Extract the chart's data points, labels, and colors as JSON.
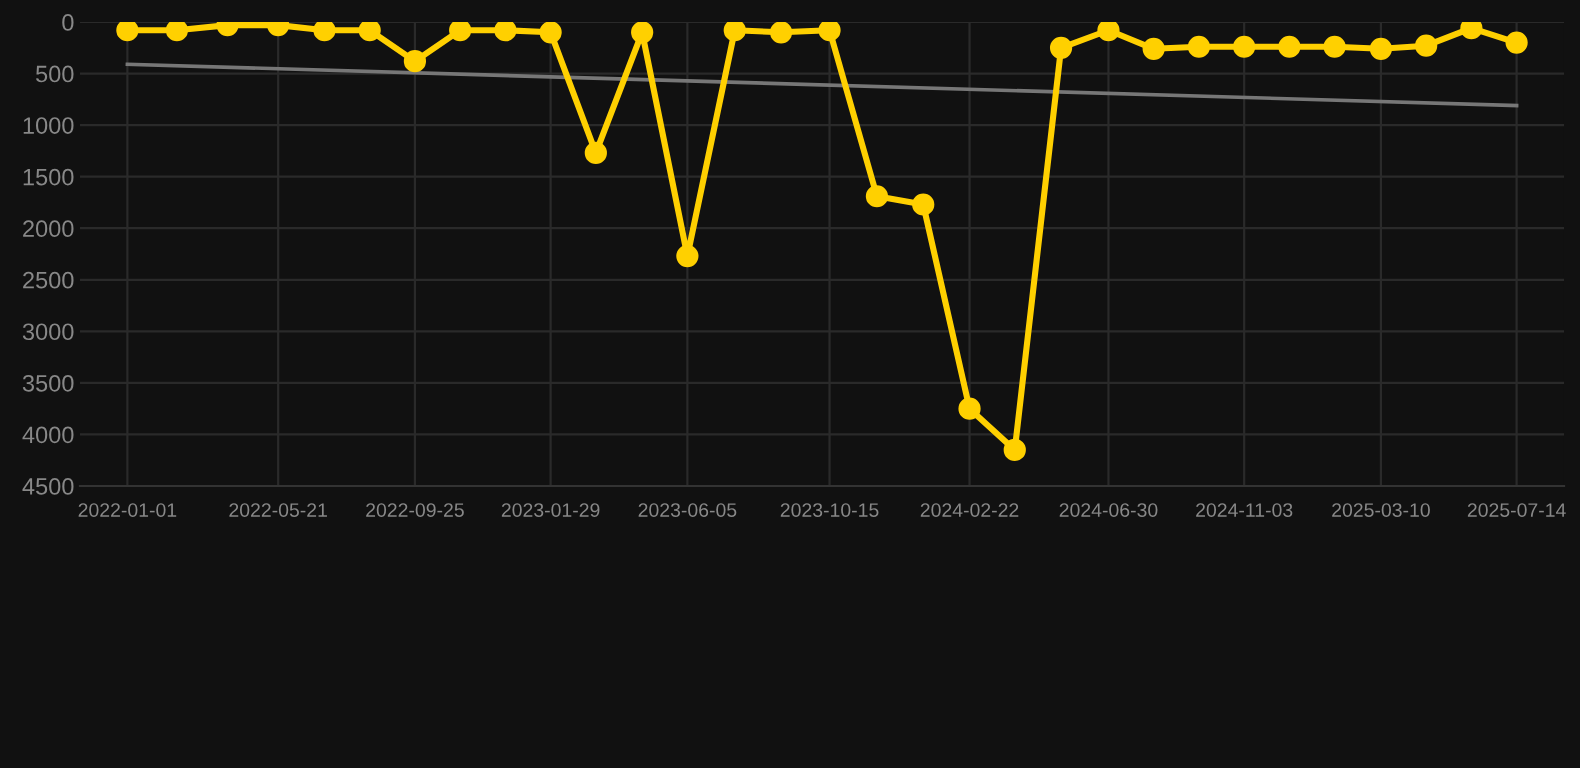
{
  "chart_data": {
    "type": "line",
    "ylim": [
      4500,
      0
    ],
    "yticks": [
      0,
      500,
      1000,
      1500,
      2000,
      2500,
      3000,
      3500,
      4000,
      4500
    ],
    "xlim": [
      "2021-11-18",
      "2025-08-27"
    ],
    "xticks": [
      {
        "value": "2022-01-01",
        "label": "2022-01-01"
      },
      {
        "value": "2022-05-21",
        "label": "2022-05-21"
      },
      {
        "value": "2022-09-25",
        "label": "2022-09-25"
      },
      {
        "value": "2023-01-29",
        "label": "2023-01-29"
      },
      {
        "value": "2023-06-05",
        "label": "2023-06-05"
      },
      {
        "value": "2023-10-15",
        "label": "2023-10-15"
      },
      {
        "value": "2024-02-22",
        "label": "2024-02-22"
      },
      {
        "value": "2024-06-30",
        "label": "2024-06-30"
      },
      {
        "value": "2024-11-03",
        "label": "2024-11-03"
      },
      {
        "value": "2025-03-10",
        "label": "2025-03-10"
      },
      {
        "value": "2025-07-14",
        "label": "2025-07-14"
      }
    ],
    "grid": true,
    "series": [
      {
        "color": "#ffd000",
        "marker": "circle",
        "x": [
          "2022-01-01",
          "2022-02-16",
          "2022-04-04",
          "2022-05-21",
          "2022-07-03",
          "2022-08-14",
          "2022-09-25",
          "2022-11-06",
          "2022-12-18",
          "2023-01-29",
          "2023-03-12",
          "2023-04-24",
          "2023-06-05",
          "2023-07-19",
          "2023-08-31",
          "2023-10-15",
          "2023-11-28",
          "2024-01-10",
          "2024-02-22",
          "2024-04-04",
          "2024-05-17",
          "2024-06-30",
          "2024-08-11",
          "2024-09-22",
          "2024-11-03",
          "2024-12-15",
          "2025-01-26",
          "2025-03-10",
          "2025-04-21",
          "2025-06-02",
          "2025-07-14"
        ],
        "values": [
          80,
          80,
          30,
          30,
          80,
          80,
          380,
          80,
          80,
          100,
          1270,
          100,
          2270,
          80,
          100,
          80,
          1690,
          1770,
          3750,
          4150,
          250,
          80,
          260,
          240,
          240,
          240,
          240,
          260,
          230,
          60,
          200
        ]
      },
      {
        "color": "#777777",
        "marker": "none",
        "x": [
          "2022-01-01",
          "2025-07-14"
        ],
        "values": [
          410,
          810
        ]
      }
    ]
  }
}
